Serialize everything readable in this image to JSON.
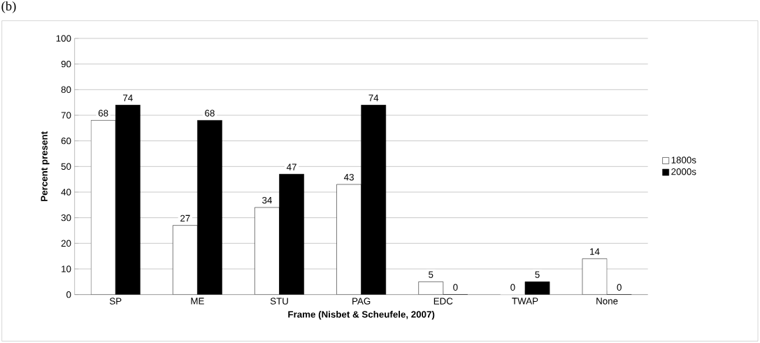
{
  "chart_data": {
    "type": "bar",
    "title": "(b)",
    "xlabel": "Frame (Nisbet & Scheufele, 2007)",
    "ylabel": "Percent present",
    "categories": [
      "SP",
      "ME",
      "STU",
      "PAG",
      "EDC",
      "TWAP",
      "None"
    ],
    "series": [
      {
        "name": "1800s",
        "color": "#ffffff",
        "values": [
          68,
          27,
          34,
          43,
          5,
          0,
          14
        ]
      },
      {
        "name": "2000s",
        "color": "#000000",
        "values": [
          74,
          68,
          47,
          74,
          0,
          5,
          0
        ]
      }
    ],
    "ylim": [
      0,
      100
    ],
    "yticks": [
      0,
      10,
      20,
      30,
      40,
      50,
      60,
      70,
      80,
      90,
      100
    ],
    "grid": "y",
    "legend": "right",
    "data_labels": true
  }
}
